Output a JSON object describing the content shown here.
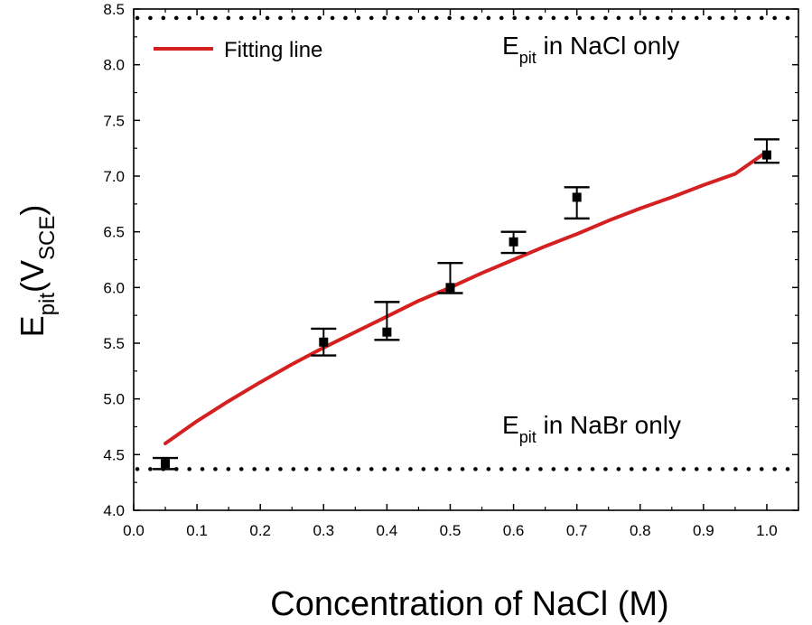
{
  "chart_data": {
    "type": "scatter",
    "xlabel": "Concentration of NaCl (M)",
    "ylabel_main": "E",
    "ylabel_sub": "pit",
    "ylabel_unit_open": "(V",
    "ylabel_unit_sub": "SCE",
    "ylabel_unit_close": ")",
    "xlim": [
      0.0,
      1.05
    ],
    "ylim": [
      4.0,
      8.5
    ],
    "x_ticks": [
      "0.0",
      "0.1",
      "0.2",
      "0.3",
      "0.4",
      "0.5",
      "0.6",
      "0.7",
      "0.8",
      "0.9",
      "1.0"
    ],
    "y_ticks": [
      "4.0",
      "4.5",
      "5.0",
      "5.5",
      "6.0",
      "6.5",
      "7.0",
      "7.5",
      "8.0",
      "8.5"
    ],
    "points": [
      {
        "x": 0.05,
        "y": 4.42,
        "err_low": 4.37,
        "err_high": 4.47
      },
      {
        "x": 0.3,
        "y": 5.51,
        "err_low": 5.39,
        "err_high": 5.63
      },
      {
        "x": 0.4,
        "y": 5.6,
        "err_low": 5.53,
        "err_high": 5.87
      },
      {
        "x": 0.5,
        "y": 6.0,
        "err_low": 5.95,
        "err_high": 6.22
      },
      {
        "x": 0.6,
        "y": 6.41,
        "err_low": 6.31,
        "err_high": 6.5
      },
      {
        "x": 0.7,
        "y": 6.81,
        "err_low": 6.62,
        "err_high": 6.9
      },
      {
        "x": 1.0,
        "y": 7.19,
        "err_low": 7.12,
        "err_high": 7.33
      }
    ],
    "fit_line": {
      "label": "Fitting line",
      "color": "#d42020",
      "x": [
        0.05,
        0.1,
        0.15,
        0.2,
        0.25,
        0.3,
        0.35,
        0.4,
        0.45,
        0.5,
        0.55,
        0.6,
        0.65,
        0.7,
        0.75,
        0.8,
        0.85,
        0.9,
        0.95,
        1.0
      ],
      "y": [
        4.6,
        4.8,
        4.98,
        5.15,
        5.31,
        5.46,
        5.6,
        5.74,
        5.88,
        6.0,
        6.13,
        6.25,
        6.37,
        6.48,
        6.6,
        6.71,
        6.81,
        6.92,
        7.02,
        7.22
      ]
    },
    "reference_lines": [
      {
        "y": 8.42,
        "label_main": "E",
        "label_sub": "pit",
        "label_rest": " in NaCl only"
      },
      {
        "y": 4.37,
        "label_main": "E",
        "label_sub": "pit",
        "label_rest": " in NaBr only"
      }
    ],
    "legend_position": "top-left"
  }
}
